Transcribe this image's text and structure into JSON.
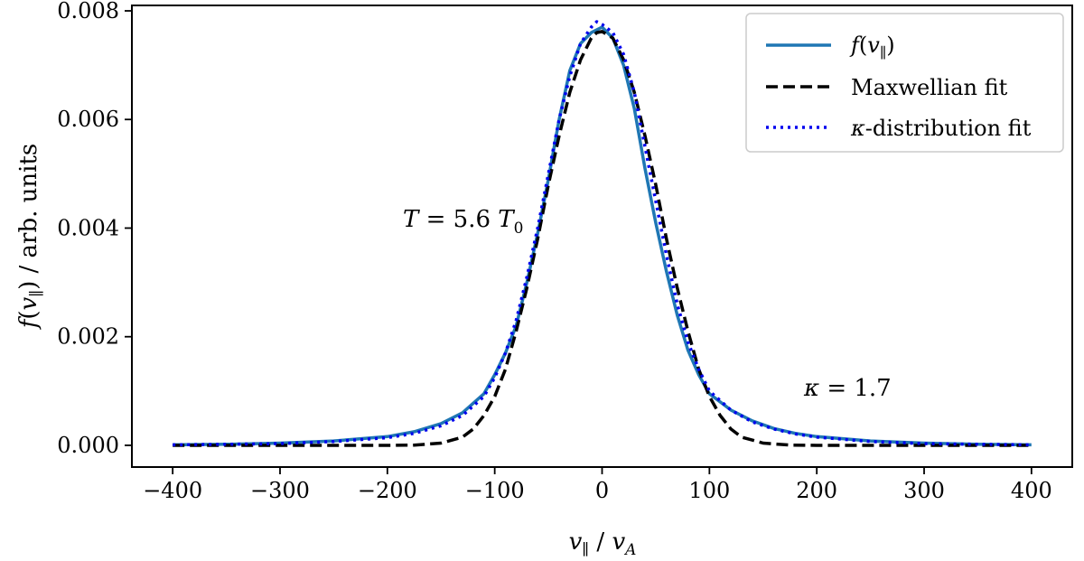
{
  "chart_data": {
    "type": "line",
    "title": "",
    "xlabel": "v∥ / vA",
    "ylabel": "f(v∥) / arb. units",
    "xlim": [
      -438,
      438
    ],
    "ylim": [
      -0.0004,
      0.0081
    ],
    "xticks": [
      -400,
      -300,
      -200,
      -100,
      0,
      100,
      200,
      300,
      400
    ],
    "xtick_labels": [
      "−400",
      "−300",
      "−200",
      "−100",
      "0",
      "100",
      "200",
      "300",
      "400"
    ],
    "yticks": [
      0.0,
      0.002,
      0.004,
      0.006,
      0.008
    ],
    "ytick_labels": [
      "0.000",
      "0.002",
      "0.004",
      "0.006",
      "0.008"
    ],
    "grid": false,
    "legend_position": "top-right",
    "series": [
      {
        "name": "f(v∥)",
        "style": "solid",
        "color": "#1f77b4",
        "points": [
          [
            -400,
            1e-05
          ],
          [
            -350,
            2e-05
          ],
          [
            -300,
            4e-05
          ],
          [
            -250,
            8e-05
          ],
          [
            -200,
            0.00016
          ],
          [
            -175,
            0.00025
          ],
          [
            -150,
            0.0004
          ],
          [
            -130,
            0.0006
          ],
          [
            -110,
            0.00095
          ],
          [
            -100,
            0.0013
          ],
          [
            -90,
            0.0017
          ],
          [
            -80,
            0.0022
          ],
          [
            -70,
            0.003
          ],
          [
            -60,
            0.0039
          ],
          [
            -50,
            0.0049
          ],
          [
            -40,
            0.006
          ],
          [
            -30,
            0.0069
          ],
          [
            -20,
            0.0074
          ],
          [
            -10,
            0.0076
          ],
          [
            0,
            0.0077
          ],
          [
            10,
            0.0075
          ],
          [
            20,
            0.007
          ],
          [
            30,
            0.0062
          ],
          [
            40,
            0.0051
          ],
          [
            50,
            0.0041
          ],
          [
            60,
            0.0032
          ],
          [
            70,
            0.0024
          ],
          [
            80,
            0.00175
          ],
          [
            90,
            0.0013
          ],
          [
            100,
            0.00095
          ],
          [
            120,
            0.00065
          ],
          [
            140,
            0.00045
          ],
          [
            160,
            0.00031
          ],
          [
            180,
            0.00022
          ],
          [
            200,
            0.00016
          ],
          [
            250,
            8e-05
          ],
          [
            300,
            4e-05
          ],
          [
            350,
            2e-05
          ],
          [
            400,
            1e-05
          ]
        ]
      },
      {
        "name": "Maxwellian fit",
        "style": "dashed",
        "color": "#000000",
        "points": [
          [
            -400,
            0.0
          ],
          [
            -300,
            0.0
          ],
          [
            -200,
            0.0
          ],
          [
            -175,
            5e-06
          ],
          [
            -150,
            4e-05
          ],
          [
            -130,
            0.00015
          ],
          [
            -120,
            0.0003
          ],
          [
            -110,
            0.00055
          ],
          [
            -100,
            0.0009
          ],
          [
            -90,
            0.0014
          ],
          [
            -80,
            0.0021
          ],
          [
            -70,
            0.0029
          ],
          [
            -60,
            0.0038
          ],
          [
            -50,
            0.0048
          ],
          [
            -40,
            0.0057
          ],
          [
            -30,
            0.0065
          ],
          [
            -20,
            0.0071
          ],
          [
            -10,
            0.0075
          ],
          [
            -5,
            0.0076
          ],
          [
            0,
            0.00762
          ],
          [
            10,
            0.0075
          ],
          [
            20,
            0.0071
          ],
          [
            30,
            0.0065
          ],
          [
            40,
            0.0057
          ],
          [
            50,
            0.0048
          ],
          [
            60,
            0.0038
          ],
          [
            70,
            0.0029
          ],
          [
            80,
            0.0021
          ],
          [
            90,
            0.0014
          ],
          [
            100,
            0.0009
          ],
          [
            110,
            0.00055
          ],
          [
            120,
            0.0003
          ],
          [
            130,
            0.00015
          ],
          [
            150,
            4e-05
          ],
          [
            175,
            5e-06
          ],
          [
            200,
            0.0
          ],
          [
            300,
            0.0
          ],
          [
            400,
            0.0
          ]
        ]
      },
      {
        "name": "κ-distribution fit",
        "style": "dotted",
        "color": "#0000ee",
        "points": [
          [
            -400,
            1e-05
          ],
          [
            -350,
            2e-05
          ],
          [
            -300,
            3e-05
          ],
          [
            -250,
            7e-05
          ],
          [
            -200,
            0.00014
          ],
          [
            -175,
            0.00022
          ],
          [
            -150,
            0.00036
          ],
          [
            -130,
            0.00055
          ],
          [
            -110,
            0.0009
          ],
          [
            -100,
            0.00125
          ],
          [
            -90,
            0.0017
          ],
          [
            -80,
            0.0023
          ],
          [
            -70,
            0.0031
          ],
          [
            -60,
            0.004
          ],
          [
            -50,
            0.005
          ],
          [
            -40,
            0.006
          ],
          [
            -30,
            0.0068
          ],
          [
            -20,
            0.0074
          ],
          [
            -10,
            0.0077
          ],
          [
            -5,
            0.0078
          ],
          [
            0,
            0.00775
          ],
          [
            10,
            0.0076
          ],
          [
            20,
            0.0072
          ],
          [
            30,
            0.0065
          ],
          [
            40,
            0.0055
          ],
          [
            50,
            0.0045
          ],
          [
            60,
            0.0035
          ],
          [
            70,
            0.0026
          ],
          [
            80,
            0.0019
          ],
          [
            90,
            0.0014
          ],
          [
            100,
            0.001
          ],
          [
            120,
            0.00065
          ],
          [
            140,
            0.00043
          ],
          [
            160,
            0.0003
          ],
          [
            180,
            0.00021
          ],
          [
            200,
            0.00015
          ],
          [
            250,
            7e-05
          ],
          [
            300,
            3e-05
          ],
          [
            350,
            2e-05
          ],
          [
            400,
            1e-05
          ]
        ]
      }
    ],
    "annotations": [
      {
        "text": "T = 5.6 T0",
        "x": -168,
        "y": 0.0042
      },
      {
        "text": "κ = 1.7",
        "x": 192,
        "y": 0.0011
      }
    ]
  }
}
